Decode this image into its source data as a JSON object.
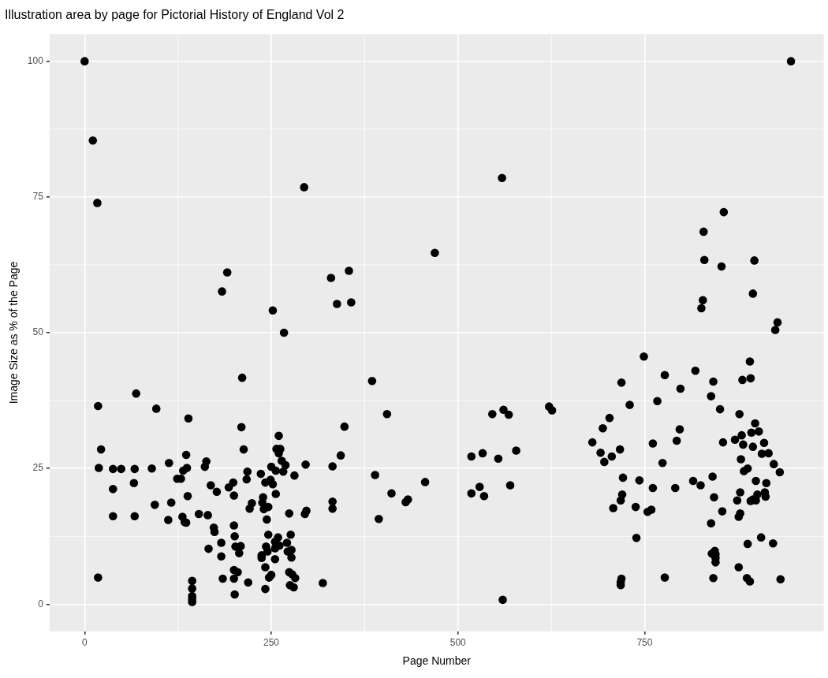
{
  "chart_data": {
    "type": "scatter",
    "title": "Illustration area by page for Pictorial History of England Vol 2",
    "xlabel": "Page Number",
    "ylabel": "Image Size as % of the Page",
    "xlim": [
      -47,
      990
    ],
    "xticks": [
      0,
      250,
      500,
      750
    ],
    "ylim": [
      -5,
      105
    ],
    "yticks": [
      0,
      25,
      50,
      75,
      100
    ],
    "grid": true,
    "legend": false,
    "marker": "circle",
    "series": [
      {
        "color": "#000000",
        "x": [
          0,
          11,
          17,
          294,
          191,
          184,
          252,
          267,
          559,
          469,
          330,
          354,
          338,
          357,
          946,
          856,
          829,
          830,
          853,
          897,
          828,
          826,
          895,
          928,
          925,
          211,
          69,
          18,
          96,
          139,
          210,
          260,
          22,
          213,
          257,
          262,
          260,
          136,
          264,
          269,
          19,
          38,
          49,
          67,
          90,
          113,
          137,
          132,
          163,
          161,
          250,
          256,
          296,
          266,
          236,
          218,
          217,
          124,
          129,
          281,
          249,
          252,
          242,
          66,
          199,
          169,
          177,
          193,
          38,
          138,
          200,
          256,
          239,
          238,
          240,
          246,
          224,
          221,
          116,
          94,
          38,
          67,
          112,
          131,
          134,
          136,
          153,
          165,
          274,
          244,
          200,
          173,
          174,
          246,
          276,
          259,
          255,
          261,
          255,
          201,
          271,
          183,
          202,
          209,
          243,
          245,
          207,
          277,
          277,
          272,
          166,
          237,
          237,
          183,
          255,
          242,
          200,
          205,
          250,
          247,
          274,
          278,
          282,
          275,
          280,
          18,
          185,
          200,
          219,
          242,
          201,
          144,
          144,
          144,
          144,
          144,
          295,
          297,
          385,
          405,
          348,
          343,
          332,
          389,
          411,
          430,
          433,
          456,
          332,
          332,
          394,
          319,
          518,
          533,
          554,
          546,
          561,
          568,
          578,
          518,
          529,
          535,
          570,
          622,
          626,
          560,
          749,
          891,
          719,
          777,
          818,
          881,
          892,
          842,
          798,
          839,
          767,
          730,
          851,
          877,
          703,
          694,
          797,
          898,
          893,
          903,
          880,
          680,
          761,
          793,
          855,
          871,
          882,
          895,
          910,
          691,
          706,
          696,
          717,
          907,
          916,
          774,
          879,
          923,
          888,
          883,
          931,
          721,
          743,
          761,
          791,
          815,
          825,
          841,
          899,
          913,
          720,
          718,
          708,
          738,
          754,
          759,
          843,
          854,
          878,
          874,
          892,
          899,
          901,
          911,
          912,
          895,
          878,
          876,
          839,
          739,
          906,
          888,
          922,
          844,
          840,
          845,
          845,
          845,
          876,
          719,
          718,
          718,
          777,
          842,
          887,
          891,
          932
        ],
        "values": [
          100,
          85.4,
          73.9,
          76.8,
          61.1,
          57.6,
          54.1,
          50.0,
          78.5,
          64.7,
          60.1,
          61.4,
          55.3,
          55.6,
          100,
          72.2,
          68.6,
          63.4,
          62.2,
          63.3,
          56.0,
          54.5,
          57.2,
          51.9,
          50.5,
          41.7,
          38.8,
          36.5,
          36.0,
          34.2,
          32.6,
          31.0,
          28.5,
          28.5,
          28.6,
          28.6,
          27.8,
          27.5,
          26.4,
          25.6,
          25.1,
          24.9,
          24.9,
          24.9,
          25.0,
          26.0,
          25.1,
          24.6,
          26.3,
          25.3,
          25.3,
          24.6,
          25.7,
          24.4,
          24.0,
          24.4,
          23.0,
          23.1,
          23.1,
          23.7,
          22.9,
          22.1,
          22.4,
          22.3,
          22.4,
          21.9,
          20.7,
          21.5,
          21.2,
          19.9,
          20.0,
          20.3,
          19.7,
          18.7,
          17.5,
          17.9,
          18.6,
          17.6,
          18.7,
          18.3,
          16.2,
          16.2,
          15.5,
          16.1,
          15.1,
          15.0,
          16.6,
          16.4,
          16.7,
          15.6,
          14.5,
          14.1,
          13.3,
          12.8,
          12.8,
          12.3,
          11.5,
          10.8,
          10.3,
          12.5,
          11.3,
          11.3,
          10.6,
          10.7,
          10.6,
          9.7,
          9.4,
          10.0,
          8.6,
          9.7,
          10.2,
          9.0,
          8.5,
          8.8,
          8.3,
          6.8,
          6.3,
          5.9,
          5.4,
          4.9,
          5.9,
          5.5,
          4.8,
          3.5,
          3.1,
          4.9,
          4.7,
          4.7,
          4.0,
          2.8,
          1.8,
          4.3,
          2.9,
          1.5,
          1.0,
          0.4,
          16.6,
          17.2,
          41.1,
          35.0,
          32.7,
          27.4,
          25.4,
          23.8,
          20.4,
          18.8,
          19.3,
          22.5,
          18.9,
          17.6,
          15.7,
          3.9,
          27.2,
          27.8,
          26.8,
          35.0,
          35.8,
          34.9,
          28.3,
          20.4,
          21.6,
          19.9,
          21.9,
          36.4,
          35.7,
          0.8,
          45.6,
          44.7,
          40.8,
          42.2,
          43.0,
          41.3,
          41.6,
          41.0,
          39.7,
          38.3,
          37.4,
          36.7,
          35.9,
          35.0,
          34.3,
          32.4,
          32.2,
          33.3,
          31.6,
          31.8,
          31.1,
          29.8,
          29.6,
          30.1,
          29.8,
          30.3,
          29.4,
          29.0,
          29.7,
          27.9,
          27.2,
          26.2,
          28.5,
          27.7,
          27.8,
          26.0,
          26.7,
          25.8,
          25.0,
          24.5,
          24.3,
          23.3,
          22.8,
          21.4,
          21.4,
          22.7,
          21.9,
          23.5,
          22.7,
          22.3,
          20.2,
          19.1,
          17.7,
          17.9,
          17.0,
          17.4,
          19.7,
          17.1,
          20.6,
          19.1,
          19.0,
          19.1,
          20.2,
          20.6,
          19.8,
          19.3,
          16.7,
          16.1,
          14.9,
          12.2,
          12.3,
          11.1,
          11.2,
          9.8,
          9.3,
          9.2,
          8.5,
          7.7,
          6.8,
          4.7,
          4.1,
          3.5,
          4.9,
          4.8,
          4.8,
          4.2,
          4.6
        ]
      }
    ]
  }
}
